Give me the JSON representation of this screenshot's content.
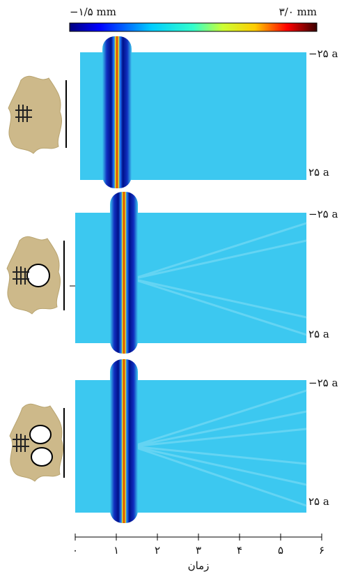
{
  "colorbar": {
    "min_label": "−۱/۵ mm",
    "max_label": "۳/۰ mm"
  },
  "panels": [
    {
      "top_label": "−۲۵ a",
      "bottom_label": "۲۵ a"
    },
    {
      "top_label": "−۲۵ a",
      "bottom_label": "۲۵ a"
    },
    {
      "top_label": "−۲۵ a",
      "bottom_label": "۲۵ a"
    }
  ],
  "x_axis": {
    "ticks": [
      "۰",
      "۱",
      "۲",
      "۳",
      "۴",
      "۵",
      "۶"
    ],
    "label": "زمان"
  }
}
